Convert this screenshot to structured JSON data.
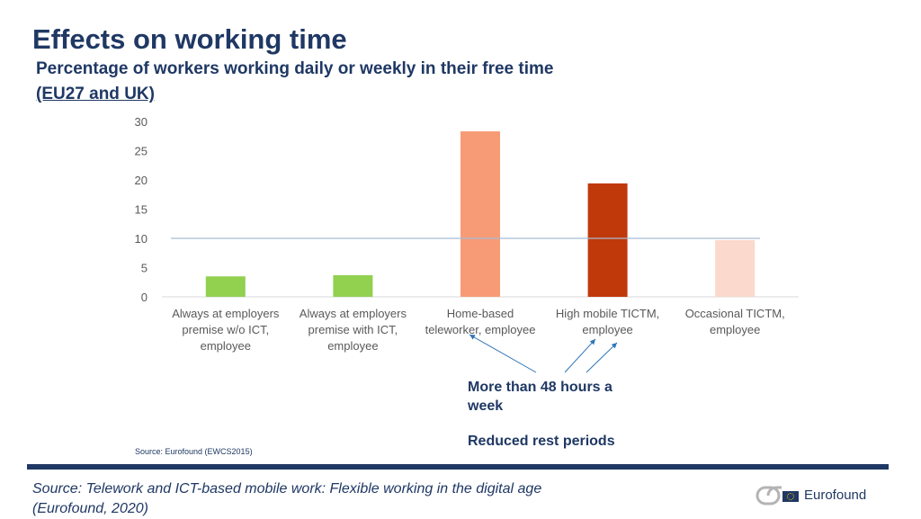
{
  "header": {
    "title": "Effects on working time",
    "subtitle": "Percentage of workers working daily or weekly in their free time",
    "region": "(EU27 and UK)"
  },
  "chart_data": {
    "type": "bar",
    "categories": [
      [
        "Always at employers",
        "premise w/o ICT,",
        "employee"
      ],
      [
        "Always at employers",
        "premise with ICT,",
        "employee"
      ],
      [
        "Home-based",
        "teleworker, employee"
      ],
      [
        "High mobile TICTM,",
        "employee"
      ],
      [
        "Occasional TICTM,",
        "employee"
      ]
    ],
    "values": [
      3.5,
      3.7,
      28.3,
      19.4,
      9.7
    ],
    "colors": [
      "#92d050",
      "#92d050",
      "#f79b77",
      "#c0390b",
      "#fbd9cc"
    ],
    "yticks": [
      0,
      5,
      10,
      15,
      20,
      25,
      30
    ],
    "ylim": [
      0,
      30
    ],
    "reference_line": 10,
    "grid": false,
    "title": "Percentage of workers working daily or weekly in their free time"
  },
  "annotations": {
    "hours": "More than 48 hours a week",
    "rest": "Reduced rest periods"
  },
  "chart_source": "Source: Eurofound (EWCS2015)",
  "footer": {
    "source": "Source: Telework and ICT-based mobile work: Flexible working in the digital age (Eurofound, 2020)",
    "logo_text": "Eurofound"
  },
  "colors": {
    "navy": "#1f3864",
    "axis": "#d9d9d9",
    "ref_line": "#a6bcd4",
    "tick_text": "#595959",
    "arrow": "#2e75b6"
  }
}
